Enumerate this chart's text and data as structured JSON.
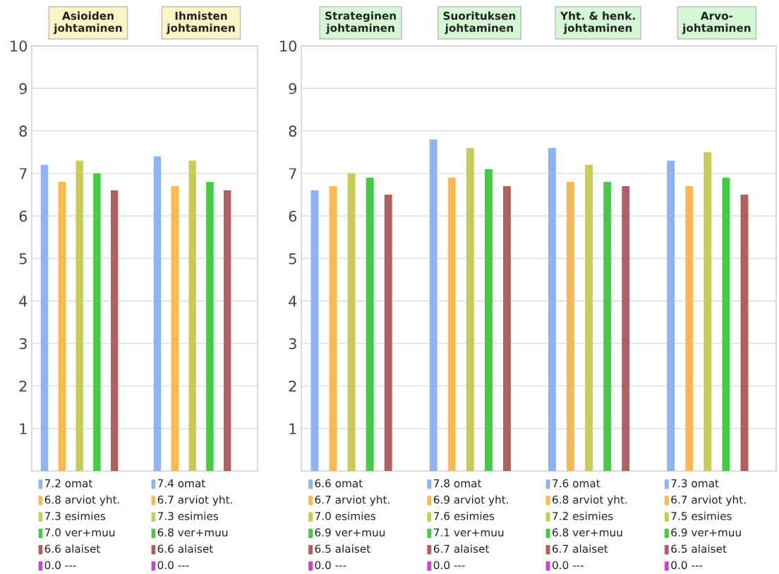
{
  "chart_data": [
    {
      "type": "bar",
      "categories": [
        "Asioiden\njohtaminen",
        "Ihmisten\njohtaminen"
      ],
      "ylim": [
        0,
        10
      ],
      "yticks": [
        1,
        2,
        3,
        4,
        5,
        6,
        7,
        8,
        9,
        10
      ],
      "grid": "y",
      "series": [
        {
          "color": "#8fb4f5",
          "values": [
            7.2,
            7.4
          ],
          "value_labels": [
            "7.2 omat",
            "7.4 omat"
          ]
        },
        {
          "color": "#ffb84d",
          "values": [
            6.8,
            6.7
          ],
          "value_labels": [
            "6.8 arviot yht.",
            "6.7 arviot yht."
          ]
        },
        {
          "color": "#c8cc55",
          "values": [
            7.3,
            7.3
          ],
          "value_labels": [
            "7.3 esimies",
            "7.3 esimies"
          ]
        },
        {
          "color": "#44cc44",
          "values": [
            7.0,
            6.8
          ],
          "value_labels": [
            "7.0 ver+muu",
            "6.8 ver+muu"
          ]
        },
        {
          "color": "#b06060",
          "values": [
            6.6,
            6.6
          ],
          "value_labels": [
            "6.6 alaiset",
            "6.6 alaiset"
          ]
        },
        {
          "color": "#cc44cc",
          "values": [
            0.0,
            0.0
          ],
          "value_labels": [
            "0.0 ---",
            "0.0 ---"
          ]
        }
      ]
    },
    {
      "type": "bar",
      "categories": [
        "Strateginen\njohtaminen",
        "Suorituksen\njohtaminen",
        "Yht. & henk.\njohtaminen",
        "Arvo-\njohtaminen"
      ],
      "ylim": [
        0,
        10
      ],
      "yticks": [
        1,
        2,
        3,
        4,
        5,
        6,
        7,
        8,
        9,
        10
      ],
      "grid": "y",
      "series": [
        {
          "color": "#8fb4f5",
          "values": [
            6.6,
            7.8,
            7.6,
            7.3
          ],
          "value_labels": [
            "6.6 omat",
            "7.8 omat",
            "7.6 omat",
            "7.3 omat"
          ]
        },
        {
          "color": "#ffb84d",
          "values": [
            6.7,
            6.9,
            6.8,
            6.7
          ],
          "value_labels": [
            "6.7 arviot yht.",
            "6.9 arviot yht.",
            "6.8 arviot yht.",
            "6.7 arviot yht."
          ]
        },
        {
          "color": "#c8cc55",
          "values": [
            7.0,
            7.6,
            7.2,
            7.5
          ],
          "value_labels": [
            "7.0 esimies",
            "7.6 esimies",
            "7.2 esimies",
            "7.5 esimies"
          ]
        },
        {
          "color": "#44cc44",
          "values": [
            6.9,
            7.1,
            6.8,
            6.9
          ],
          "value_labels": [
            "6.9 ver+muu",
            "7.1 ver+muu",
            "6.8 ver+muu",
            "6.9 ver+muu"
          ]
        },
        {
          "color": "#b06060",
          "values": [
            6.5,
            6.7,
            6.7,
            6.5
          ],
          "value_labels": [
            "6.5 alaiset",
            "6.7 alaiset",
            "6.7 alaiset",
            "6.5 alaiset"
          ]
        },
        {
          "color": "#cc44cc",
          "values": [
            0.0,
            0.0,
            0.0,
            0.0
          ],
          "value_labels": [
            "0.0 ---",
            "0.0 ---",
            "0.0 ---",
            "0.0 ---"
          ]
        }
      ]
    }
  ]
}
